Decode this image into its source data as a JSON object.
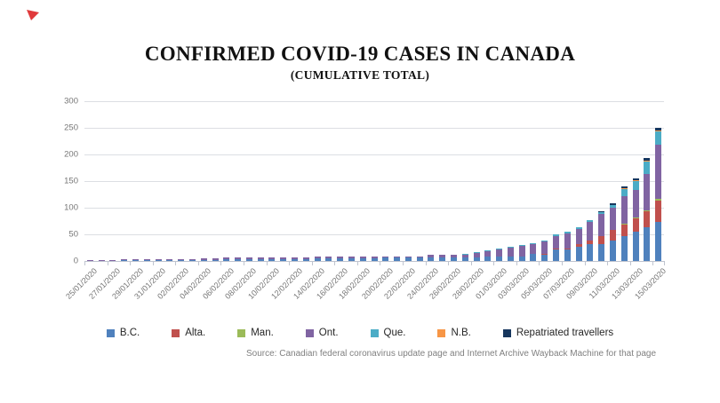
{
  "decor": {
    "red_marker_color": "#e03a3c"
  },
  "chart_data": {
    "type": "bar",
    "stacked": true,
    "title": "CONFIRMED COVID-19 CASES IN CANADA",
    "subtitle": "(CUMULATIVE TOTAL)",
    "source": "Source:  Canadian federal coronavirus update page and Internet  Archive Wayback Machine for that page",
    "grid": "horizontal",
    "legend_position": "bottom",
    "ylim": [
      0,
      300
    ],
    "yticks": [
      0,
      50,
      100,
      150,
      200,
      250,
      300
    ],
    "x_label_every": 2,
    "categories": [
      "25/01/2020",
      "26/01/2020",
      "27/01/2020",
      "28/01/2020",
      "29/01/2020",
      "30/01/2020",
      "31/01/2020",
      "01/02/2020",
      "02/02/2020",
      "03/02/2020",
      "04/02/2020",
      "05/02/2020",
      "06/02/2020",
      "07/02/2020",
      "08/02/2020",
      "09/02/2020",
      "10/02/2020",
      "11/02/2020",
      "12/02/2020",
      "13/02/2020",
      "14/02/2020",
      "15/02/2020",
      "16/02/2020",
      "17/02/2020",
      "18/02/2020",
      "19/02/2020",
      "20/02/2020",
      "21/02/2020",
      "22/02/2020",
      "23/02/2020",
      "24/02/2020",
      "25/02/2020",
      "26/02/2020",
      "27/02/2020",
      "28/02/2020",
      "29/02/2020",
      "01/03/2020",
      "02/03/2020",
      "03/03/2020",
      "04/03/2020",
      "05/03/2020",
      "06/03/2020",
      "07/03/2020",
      "08/03/2020",
      "09/03/2020",
      "10/03/2020",
      "11/03/2020",
      "12/03/2020",
      "13/03/2020",
      "14/03/2020",
      "15/03/2020"
    ],
    "series": [
      {
        "name": "B.C.",
        "color": "#4F81BD",
        "values": [
          0,
          0,
          0,
          1,
          1,
          1,
          1,
          1,
          1,
          1,
          2,
          2,
          4,
          4,
          4,
          4,
          4,
          4,
          4,
          4,
          5,
          5,
          5,
          5,
          5,
          5,
          6,
          6,
          6,
          6,
          7,
          7,
          7,
          7,
          7,
          8,
          8,
          8,
          9,
          13,
          13,
          21,
          21,
          27,
          32,
          32,
          39,
          46,
          55,
          64,
          73
        ]
      },
      {
        "name": "Alta.",
        "color": "#C0504D",
        "values": [
          0,
          0,
          0,
          0,
          0,
          0,
          0,
          0,
          0,
          0,
          0,
          0,
          0,
          0,
          0,
          0,
          0,
          0,
          0,
          0,
          0,
          0,
          0,
          0,
          0,
          0,
          0,
          0,
          0,
          0,
          0,
          0,
          0,
          0,
          0,
          0,
          0,
          0,
          0,
          0,
          1,
          2,
          2,
          4,
          7,
          14,
          19,
          23,
          25,
          29,
          40
        ]
      },
      {
        "name": "Man.",
        "color": "#9BBB59",
        "values": [
          0,
          0,
          0,
          0,
          0,
          0,
          0,
          0,
          0,
          0,
          0,
          0,
          0,
          0,
          0,
          0,
          0,
          0,
          0,
          0,
          0,
          0,
          0,
          0,
          0,
          0,
          0,
          0,
          0,
          0,
          0,
          0,
          0,
          0,
          0,
          0,
          0,
          0,
          0,
          0,
          0,
          0,
          0,
          0,
          0,
          0,
          0,
          1,
          1,
          2,
          4
        ]
      },
      {
        "name": "Ont.",
        "color": "#8064A2",
        "values": [
          1,
          1,
          2,
          2,
          2,
          3,
          3,
          3,
          3,
          3,
          3,
          3,
          3,
          3,
          3,
          3,
          3,
          3,
          3,
          3,
          3,
          3,
          3,
          3,
          3,
          3,
          3,
          3,
          3,
          3,
          4,
          4,
          5,
          6,
          8,
          11,
          15,
          18,
          20,
          20,
          22,
          24,
          28,
          29,
          34,
          42,
          42,
          52,
          53,
          69,
          101
        ]
      },
      {
        "name": "Que.",
        "color": "#4BACC6",
        "values": [
          0,
          0,
          0,
          0,
          0,
          0,
          0,
          0,
          0,
          0,
          0,
          0,
          0,
          0,
          0,
          0,
          0,
          0,
          0,
          0,
          0,
          0,
          0,
          0,
          0,
          0,
          0,
          0,
          0,
          0,
          0,
          0,
          0,
          1,
          1,
          1,
          1,
          1,
          1,
          1,
          2,
          3,
          4,
          4,
          4,
          4,
          5,
          13,
          16,
          24,
          25
        ]
      },
      {
        "name": "N.B.",
        "color": "#F79646",
        "values": [
          0,
          0,
          0,
          0,
          0,
          0,
          0,
          0,
          0,
          0,
          0,
          0,
          0,
          0,
          0,
          0,
          0,
          0,
          0,
          0,
          0,
          0,
          0,
          0,
          0,
          0,
          0,
          0,
          0,
          0,
          0,
          0,
          0,
          0,
          0,
          0,
          0,
          0,
          0,
          0,
          0,
          0,
          0,
          0,
          0,
          0,
          0,
          1,
          1,
          1,
          2
        ]
      },
      {
        "name": "Repatriated travellers",
        "color": "#17375E",
        "values": [
          0,
          0,
          0,
          0,
          0,
          0,
          0,
          0,
          0,
          0,
          0,
          0,
          0,
          0,
          0,
          0,
          0,
          0,
          0,
          0,
          0,
          0,
          0,
          0,
          0,
          0,
          0,
          0,
          0,
          0,
          0,
          0,
          0,
          0,
          0,
          0,
          0,
          0,
          0,
          0,
          0,
          0,
          0,
          0,
          0,
          1,
          3,
          4,
          4,
          4,
          5
        ]
      }
    ]
  }
}
